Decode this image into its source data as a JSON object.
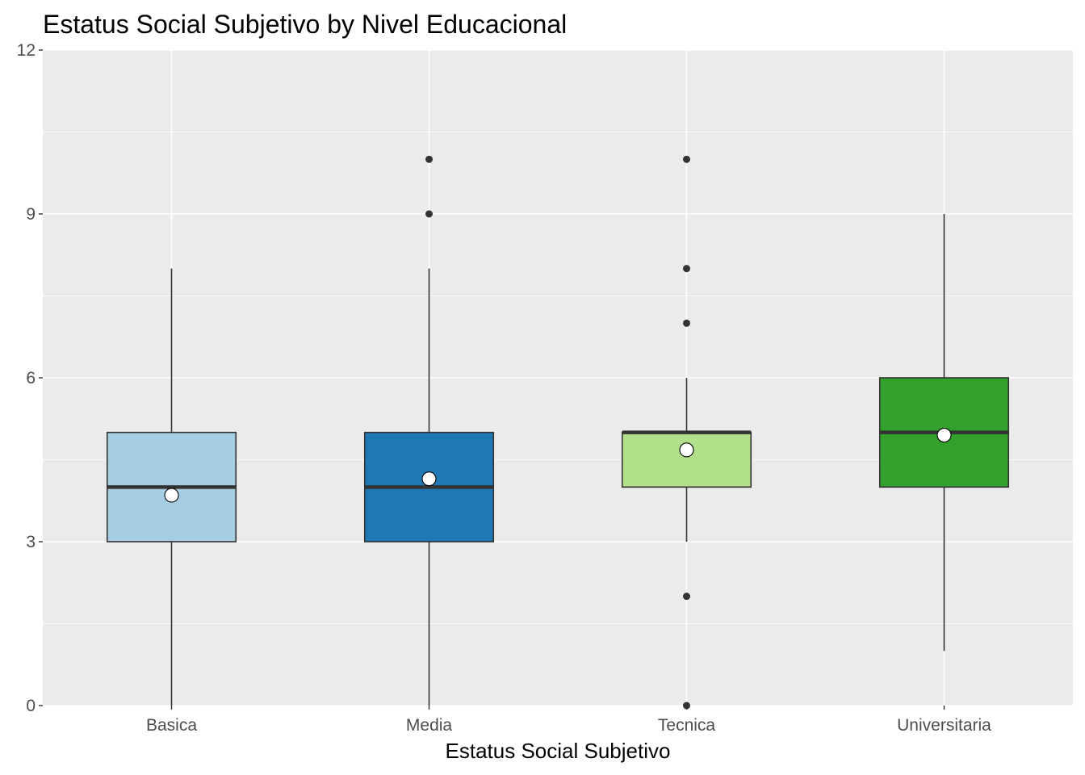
{
  "chart_data": {
    "type": "boxplot",
    "title": "Estatus Social Subjetivo by Nivel Educacional",
    "xlabel": "Estatus Social Subjetivo",
    "ylabel": "",
    "ylim": [
      0,
      12
    ],
    "yticks": [
      0,
      3,
      6,
      9,
      12
    ],
    "grid": true,
    "categories": [
      "Basica",
      "Media",
      "Tecnica",
      "Universitaria"
    ],
    "boxes": [
      {
        "category": "Basica",
        "whisker_low": 0,
        "q1": 3,
        "median": 4,
        "q3": 5,
        "whisker_high": 8,
        "mean": 3.85,
        "outliers": [],
        "color": "#a6cee3"
      },
      {
        "category": "Media",
        "whisker_low": 0,
        "q1": 3,
        "median": 4,
        "q3": 5,
        "whisker_high": 8,
        "mean": 4.15,
        "outliers": [
          9,
          10
        ],
        "color": "#1f78b4"
      },
      {
        "category": "Tecnica",
        "whisker_low": 3,
        "q1": 4,
        "median": 5,
        "q3": 5,
        "whisker_high": 6,
        "mean": 4.68,
        "outliers": [
          0,
          2,
          7,
          8,
          10
        ],
        "color": "#b2df8a"
      },
      {
        "category": "Universitaria",
        "whisker_low": 1,
        "q1": 4,
        "median": 5,
        "q3": 6,
        "whisker_high": 9,
        "mean": 4.95,
        "outliers": [],
        "color": "#33a02c"
      }
    ]
  }
}
